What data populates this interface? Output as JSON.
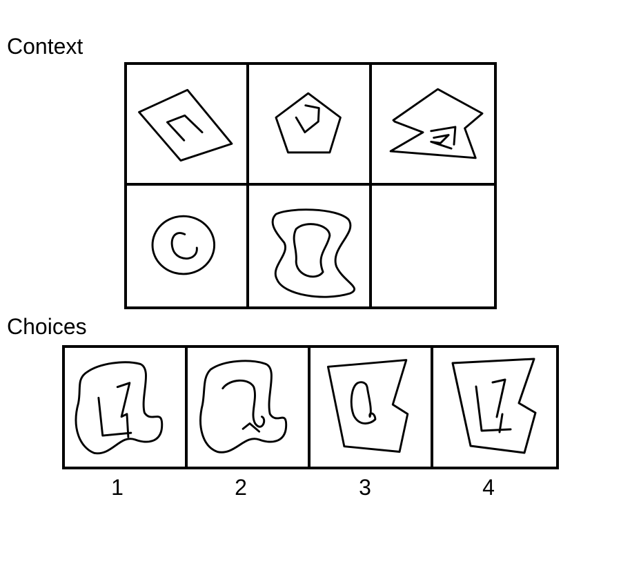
{
  "labels": {
    "context": "Context",
    "choices": "Choices"
  },
  "choice_numbers": [
    "1",
    "2",
    "3",
    "4"
  ],
  "answer_cell": "empty"
}
